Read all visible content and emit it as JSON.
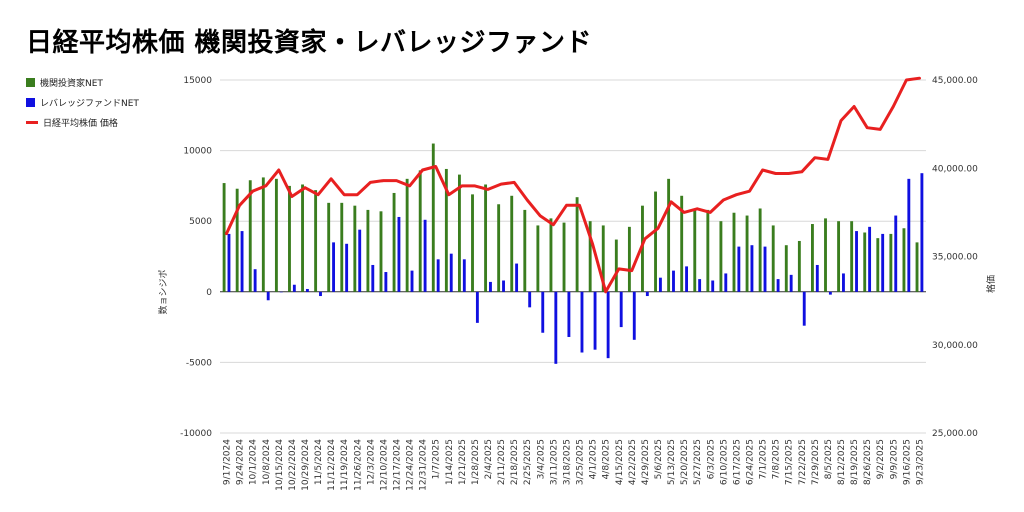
{
  "chart_data": {
    "type": "bar",
    "title": "日経平均株価 機関投資家・レバレッジファンド",
    "ylabel": "数ョシジポ",
    "y2label": "格価",
    "ylim": [
      -10000,
      15000
    ],
    "y2lim": [
      25000,
      45000
    ],
    "y_ticks": [
      "15000",
      "10000",
      "5000",
      "0",
      "-5000",
      "-10000"
    ],
    "y2_ticks": [
      "45,000.00",
      "40,000.00",
      "35,000.00",
      "30,000.00",
      "25,000.00"
    ],
    "grid": true,
    "legend_position": "left",
    "categories": [
      "9/17/2024",
      "9/24/2024",
      "10/1/2024",
      "10/8/2024",
      "10/15/2024",
      "10/22/2024",
      "10/29/2024",
      "11/5/2024",
      "11/12/2024",
      "11/19/2024",
      "11/26/2024",
      "12/3/2024",
      "12/10/2024",
      "12/17/2024",
      "12/24/2024",
      "12/31/2024",
      "1/7/2025",
      "1/14/2025",
      "1/21/2025",
      "1/28/2025",
      "2/4/2025",
      "2/11/2025",
      "2/18/2025",
      "2/25/2025",
      "3/4/2025",
      "3/11/2025",
      "3/18/2025",
      "3/25/2025",
      "4/1/2025",
      "4/8/2025",
      "4/15/2025",
      "4/22/2025",
      "4/29/2025",
      "5/6/2025",
      "5/13/2025",
      "5/20/2025",
      "5/27/2025",
      "6/3/2025",
      "6/10/2025",
      "6/17/2025",
      "6/24/2025",
      "7/1/2025",
      "7/8/2025",
      "7/15/2025",
      "7/22/2025",
      "7/29/2025",
      "8/5/2025",
      "8/12/2025",
      "8/19/2025",
      "8/26/2025",
      "9/2/2025",
      "9/9/2025",
      "9/16/2025",
      "9/23/2025"
    ],
    "series": [
      {
        "name": "機関投資家NET",
        "color": "#3a7d1e",
        "kind": "bar",
        "values": [
          7700,
          7300,
          7900,
          8100,
          8000,
          7500,
          7600,
          7200,
          6300,
          6300,
          6100,
          5800,
          5700,
          7000,
          8000,
          8600,
          10500,
          8700,
          8300,
          6900,
          7600,
          6200,
          6800,
          5800,
          4700,
          5200,
          4900,
          6700,
          5000,
          4700,
          3700,
          4600,
          6100,
          7100,
          8000,
          6800,
          5800,
          5800,
          5000,
          5600,
          5400,
          5900,
          4700,
          3300,
          3600,
          4800,
          5200,
          5000,
          5000,
          4200,
          3800,
          4100,
          4500,
          3500
        ]
      },
      {
        "name": "レバレッジファンドNET",
        "color": "#1010e0",
        "kind": "bar",
        "values": [
          4100,
          4300,
          1600,
          -600,
          0,
          500,
          200,
          -300,
          3500,
          3400,
          4400,
          1900,
          1400,
          5300,
          1500,
          5100,
          2300,
          2700,
          2300,
          -2200,
          700,
          800,
          2000,
          -1100,
          -2900,
          -5100,
          -3200,
          -4300,
          -4100,
          -4700,
          -2500,
          -3400,
          -300,
          1000,
          1500,
          1800,
          900,
          800,
          1300,
          3200,
          3300,
          3200,
          900,
          1200,
          -2400,
          1900,
          -200,
          1300,
          4300,
          4600,
          4100,
          5400,
          8000,
          8400
        ]
      },
      {
        "name": "日経平均株価 価格",
        "color": "#e82020",
        "kind": "line",
        "axis": "right",
        "values": [
          36300,
          37900,
          38700,
          39000,
          39900,
          38400,
          38900,
          38500,
          39400,
          38500,
          38500,
          39200,
          39300,
          39300,
          39000,
          39900,
          40100,
          38500,
          39000,
          39000,
          38800,
          39100,
          39200,
          38200,
          37300,
          36800,
          37900,
          37900,
          35700,
          33000,
          34300,
          34200,
          36000,
          36600,
          38100,
          37500,
          37700,
          37500,
          38200,
          38500,
          38700,
          39900,
          39700,
          39700,
          39800,
          40600,
          40500,
          42700,
          43500,
          42300,
          42200,
          43500,
          45000,
          45100
        ]
      }
    ]
  }
}
